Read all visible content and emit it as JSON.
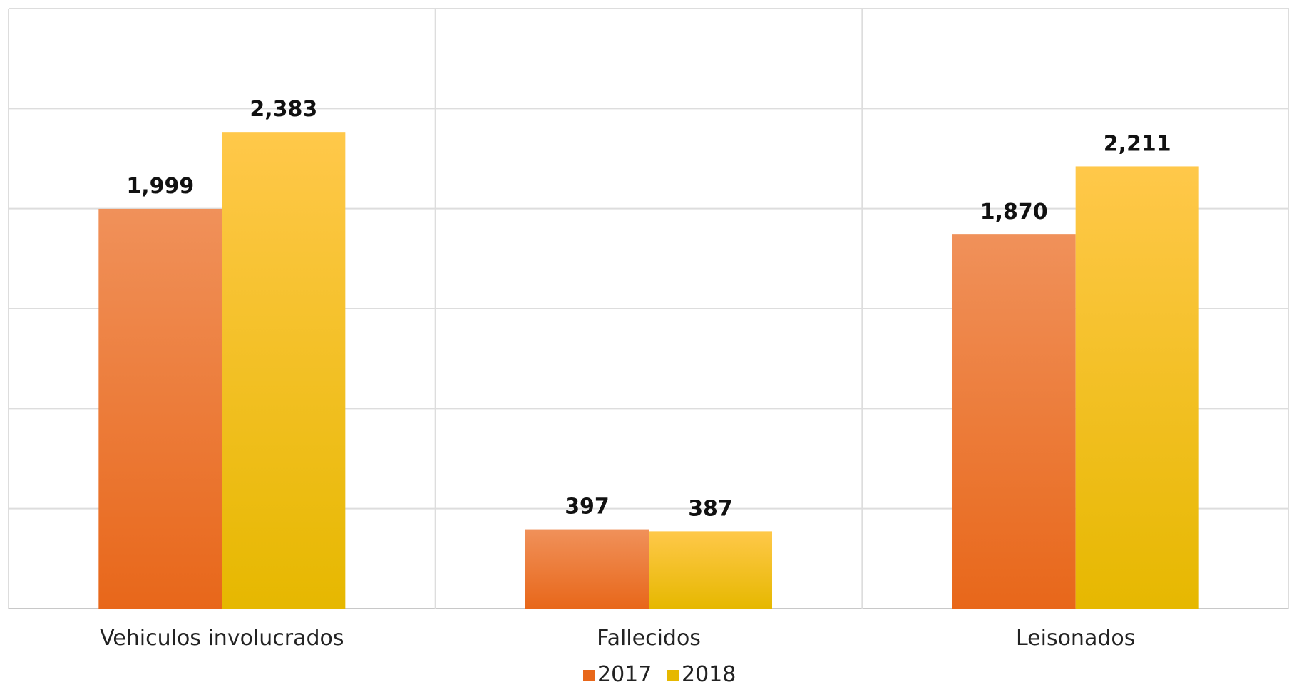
{
  "chart_data": {
    "type": "bar",
    "categories": [
      "Vehiculos involucrados",
      "Fallecidos",
      "Leisonados"
    ],
    "series": [
      {
        "name": "2017",
        "values": [
          1999,
          397,
          1870
        ],
        "labels": [
          "1,999",
          "397",
          "1,870"
        ],
        "color_top": "#f0915a",
        "color_bottom": "#e8671a"
      },
      {
        "name": "2018",
        "values": [
          2383,
          387,
          2211
        ],
        "labels": [
          "2,383",
          "387",
          "2,211"
        ],
        "color_top": "#ffc84a",
        "color_bottom": "#e6b800"
      }
    ],
    "ylim": [
      0,
      3000
    ],
    "grid": true,
    "legend": "bottom-center"
  }
}
